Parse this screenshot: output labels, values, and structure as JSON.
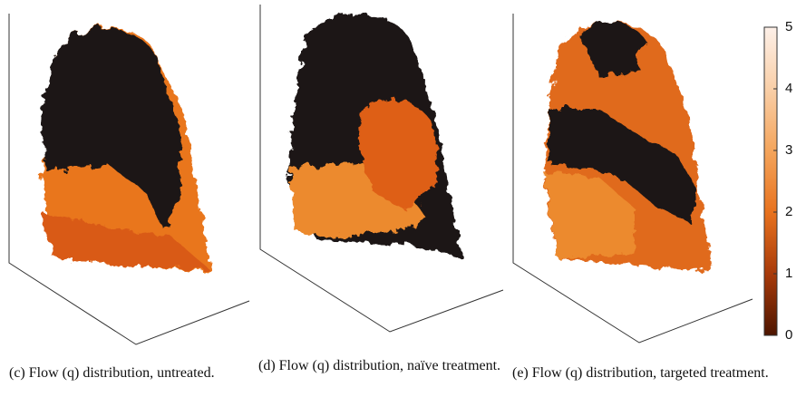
{
  "panels": [
    {
      "caption": "(c) Flow (q) distribution, untreated."
    },
    {
      "caption": "(d) Flow (q) distribution, naïve treatment."
    },
    {
      "caption": "(e) Flow (q) distribution, targeted treatment."
    }
  ],
  "colorbar": {
    "lim": [
      0,
      5
    ],
    "ticks": [
      0,
      1,
      2,
      3,
      4,
      5
    ]
  }
}
